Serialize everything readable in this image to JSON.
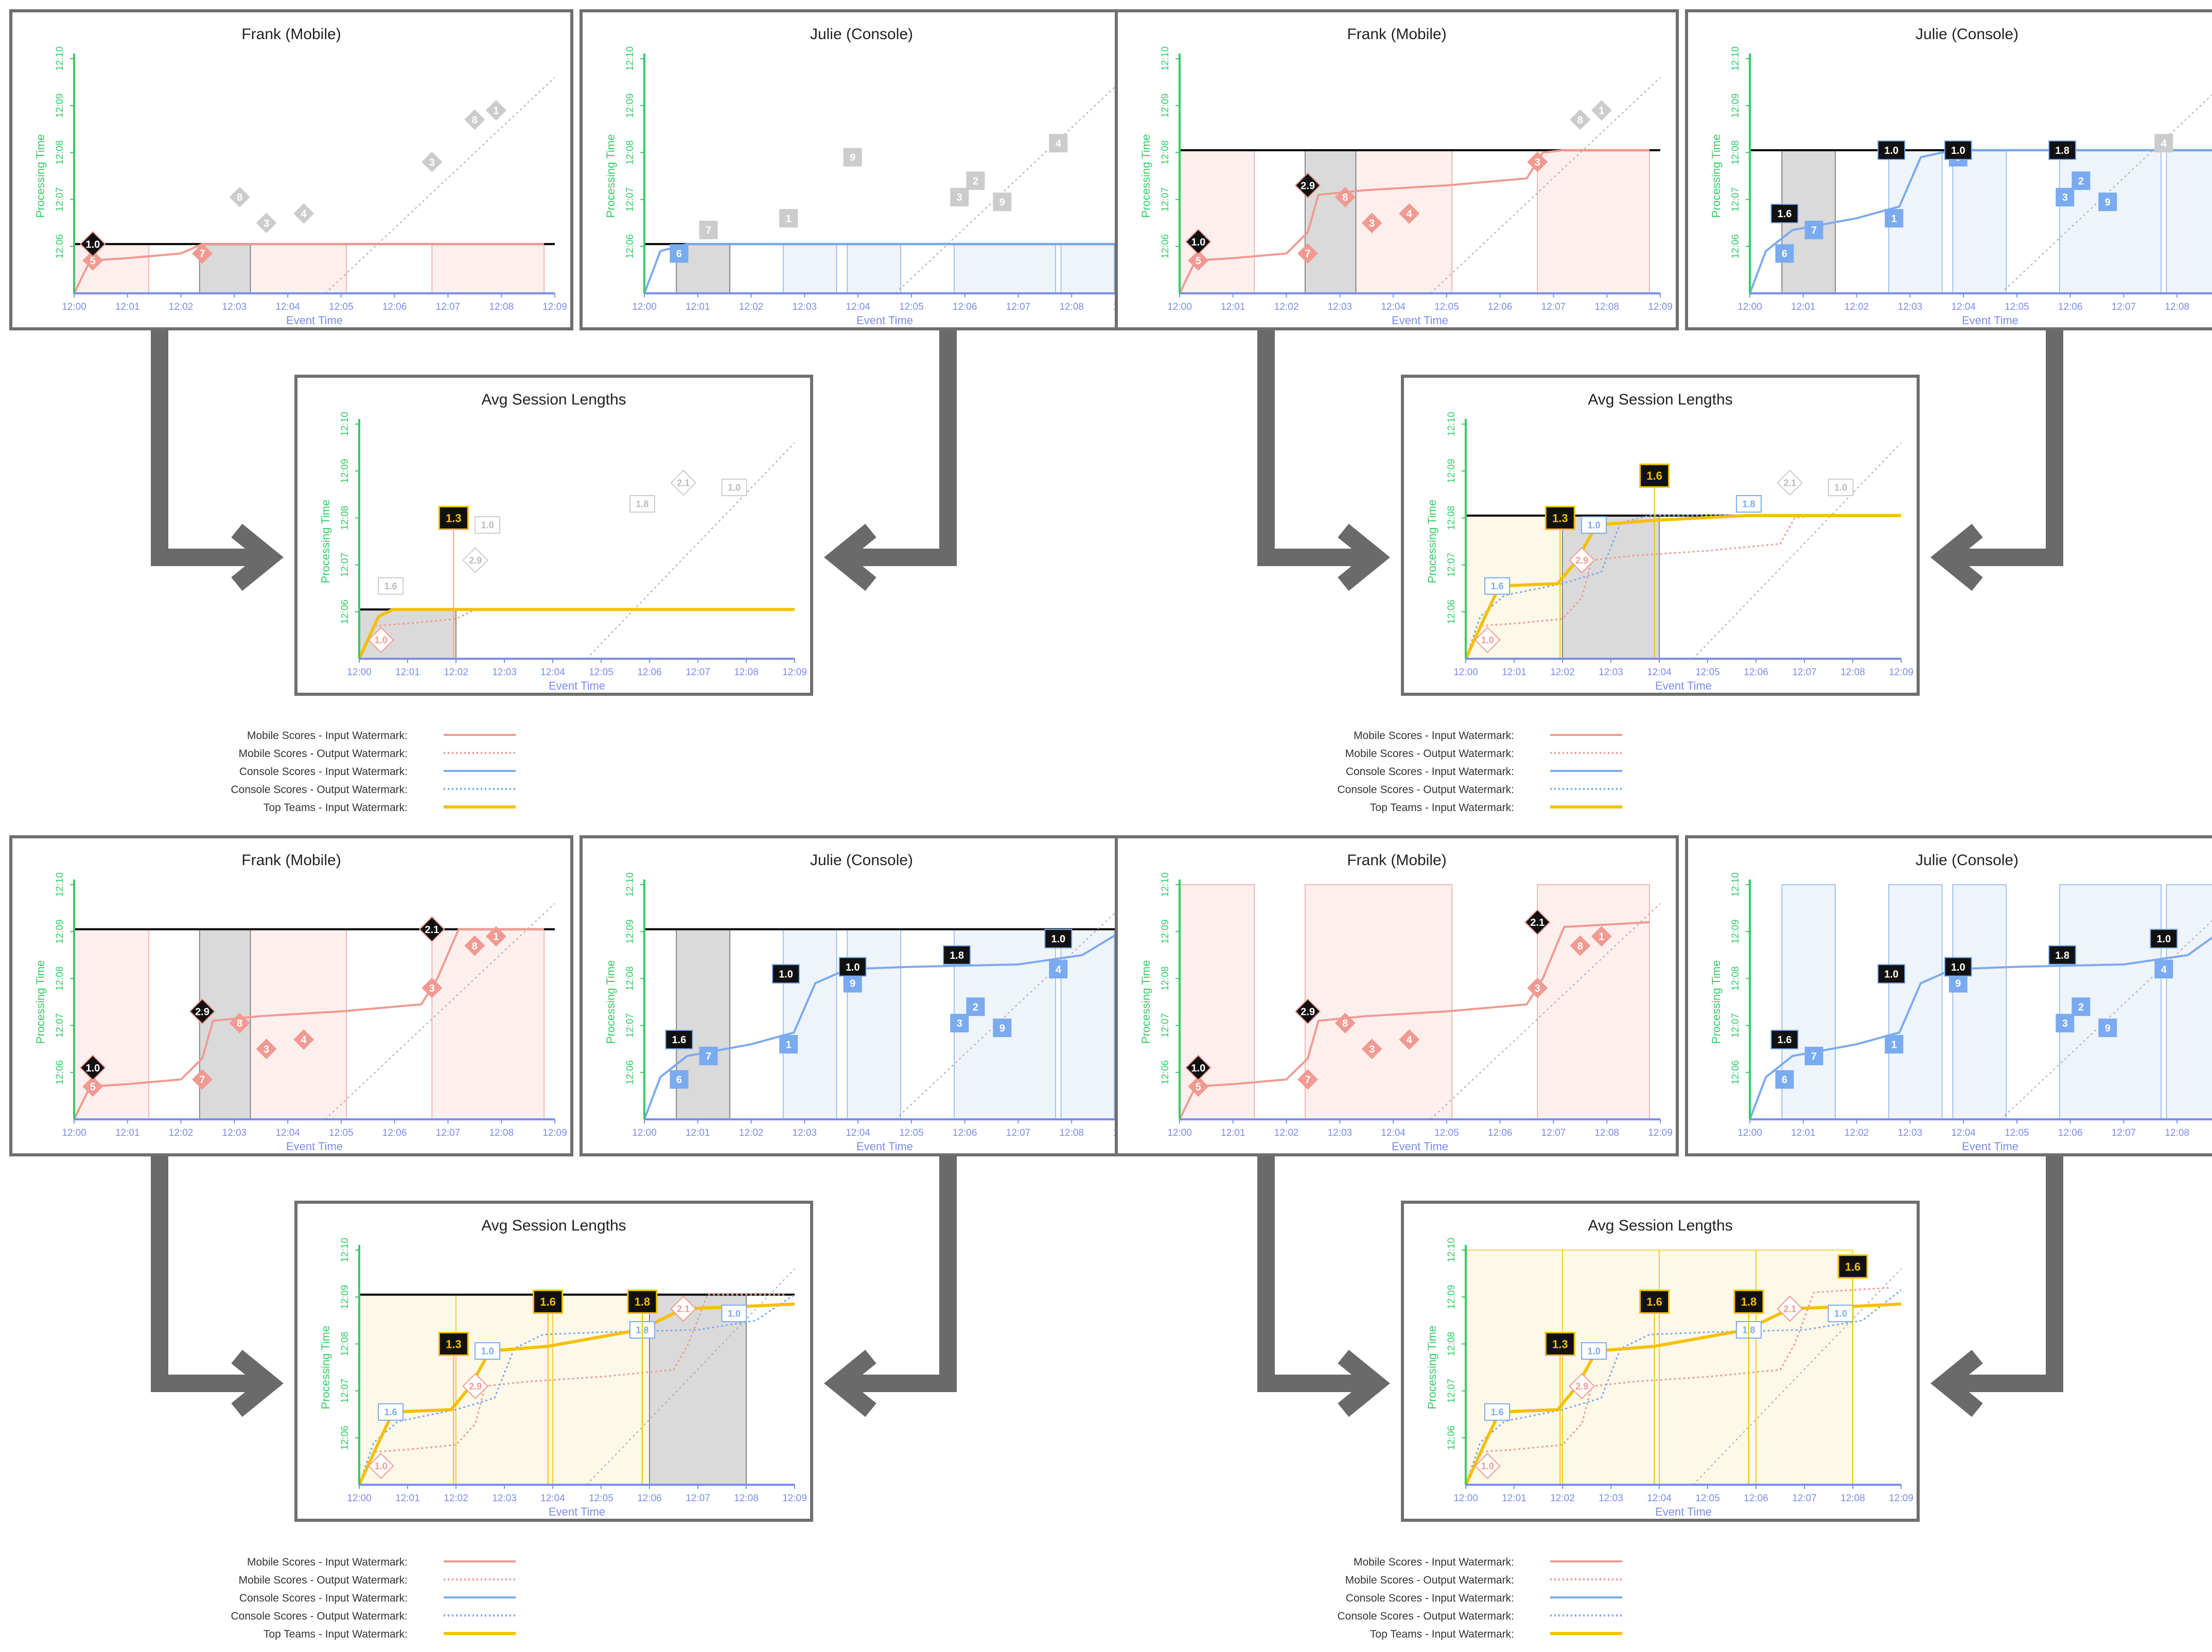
{
  "axes": {
    "x_label": "Event Time",
    "y_label": "Processing Time",
    "x_ticks": [
      "12:00",
      "12:01",
      "12:02",
      "12:03",
      "12:04",
      "12:05",
      "12:06",
      "12:07",
      "12:08",
      "12:09"
    ],
    "y_ticks": [
      "12:06",
      "12:07",
      "12:08",
      "12:09",
      "12:10"
    ]
  },
  "colors": {
    "mobile": "#f19a92",
    "mobile_fill": "#fdeeed",
    "console": "#7aaaf0",
    "console_fill": "#eef3fb",
    "teams": "#f5c000",
    "teams_fill": "#fdf8e6",
    "axis_x": "#7b8cf0",
    "axis_y": "#33cc66",
    "pane_gray": "#dadada",
    "frame": "#6f6f6f",
    "badge_black": "#111111",
    "future_gray": "#cccccc"
  },
  "legend": {
    "items": [
      {
        "label": "Mobile Scores - Input Watermark:",
        "color": "#f19a92",
        "style": "solid"
      },
      {
        "label": "Mobile Scores - Output Watermark:",
        "color": "#f19a92",
        "style": "dotted"
      },
      {
        "label": "Console Scores - Input Watermark:",
        "color": "#7aaaf0",
        "style": "solid"
      },
      {
        "label": "Console Scores - Output Watermark:",
        "color": "#7aaaf0",
        "style": "dotted"
      },
      {
        "label": "Top Teams - Input Watermark:",
        "color": "#f5c000",
        "style": "solid"
      }
    ]
  },
  "panels": [
    {
      "title": "Frank (Mobile)"
    },
    {
      "title": "Julie (Console)"
    },
    {
      "title": "Avg Session Lengths"
    },
    {
      "title": "Frank (Mobile)"
    },
    {
      "title": "Julie (Console)"
    },
    {
      "title": "Avg Session Lengths"
    },
    {
      "title": "Frank (Mobile)"
    },
    {
      "title": "Julie (Console)"
    },
    {
      "title": "Avg Session Lengths"
    },
    {
      "title": "Frank (Mobile)"
    },
    {
      "title": "Julie (Console)"
    },
    {
      "title": "Avg Session Lengths"
    }
  ],
  "points": {
    "mobile": [
      {
        "label": "5",
        "et": 0.35,
        "pt": 5.7
      },
      {
        "label": "7",
        "et": 2.4,
        "pt": 5.85
      },
      {
        "label": "8",
        "et": 3.1,
        "pt": 7.05
      },
      {
        "label": "3",
        "et": 3.6,
        "pt": 6.5
      },
      {
        "label": "4",
        "et": 4.3,
        "pt": 6.7
      },
      {
        "label": "3",
        "et": 6.7,
        "pt": 7.8
      },
      {
        "label": "8",
        "et": 7.5,
        "pt": 8.7
      },
      {
        "label": "1",
        "et": 7.9,
        "pt": 8.9
      }
    ],
    "console": [
      {
        "label": "6",
        "et": 0.65,
        "pt": 5.85
      },
      {
        "label": "7",
        "et": 1.2,
        "pt": 6.35
      },
      {
        "label": "1",
        "et": 2.7,
        "pt": 6.6
      },
      {
        "label": "9",
        "et": 3.9,
        "pt": 7.9
      },
      {
        "label": "3",
        "et": 5.9,
        "pt": 7.05
      },
      {
        "label": "2",
        "et": 6.2,
        "pt": 7.4
      },
      {
        "label": "9",
        "et": 6.7,
        "pt": 6.95
      },
      {
        "label": "4",
        "et": 7.75,
        "pt": 8.2
      }
    ]
  },
  "badges": {
    "mobile": [
      {
        "label": "1.0",
        "et": 0.35,
        "pt": 6.1
      },
      {
        "label": "2.9",
        "et": 2.4,
        "pt": 7.3
      },
      {
        "label": "2.1",
        "et": 6.7,
        "pt": 9.2
      }
    ],
    "console": [
      {
        "label": "1.6",
        "et": 0.65,
        "pt": 6.7
      },
      {
        "label": "1.0",
        "et": 2.65,
        "pt": 8.1
      },
      {
        "label": "1.0",
        "et": 3.9,
        "pt": 8.25
      },
      {
        "label": "1.8",
        "et": 5.85,
        "pt": 8.5
      },
      {
        "label": "1.0",
        "et": 7.75,
        "pt": 8.85
      }
    ],
    "avg": [
      {
        "label": "1.0",
        "et": 0.45,
        "pt": 5.4,
        "kind": "mobile"
      },
      {
        "label": "1.6",
        "et": 0.65,
        "pt": 6.55,
        "kind": "console"
      },
      {
        "label": "2.9",
        "et": 2.4,
        "pt": 7.1,
        "kind": "mobile"
      },
      {
        "label": "1.0",
        "et": 2.65,
        "pt": 7.85,
        "kind": "console"
      },
      {
        "label": "1.8",
        "et": 5.85,
        "pt": 8.3,
        "kind": "console"
      },
      {
        "label": "2.1",
        "et": 6.7,
        "pt": 8.75,
        "kind": "mobile"
      },
      {
        "label": "1.0",
        "et": 7.75,
        "pt": 8.65,
        "kind": "console"
      }
    ],
    "teams": [
      {
        "label": "1.3",
        "et": 1.95,
        "pt": 8.0
      },
      {
        "label": "1.6",
        "et": 3.9,
        "pt": 8.9
      },
      {
        "label": "1.8",
        "et": 5.85,
        "pt": 8.9
      },
      {
        "label": "1.6",
        "et": 8.0,
        "pt": 9.65
      }
    ],
    "gray_early": [
      {
        "label": "1.0",
        "et": 1.8,
        "pt": 6.2
      },
      {
        "label": "2.0",
        "et": 3.6,
        "pt": 7.95
      }
    ]
  }
}
